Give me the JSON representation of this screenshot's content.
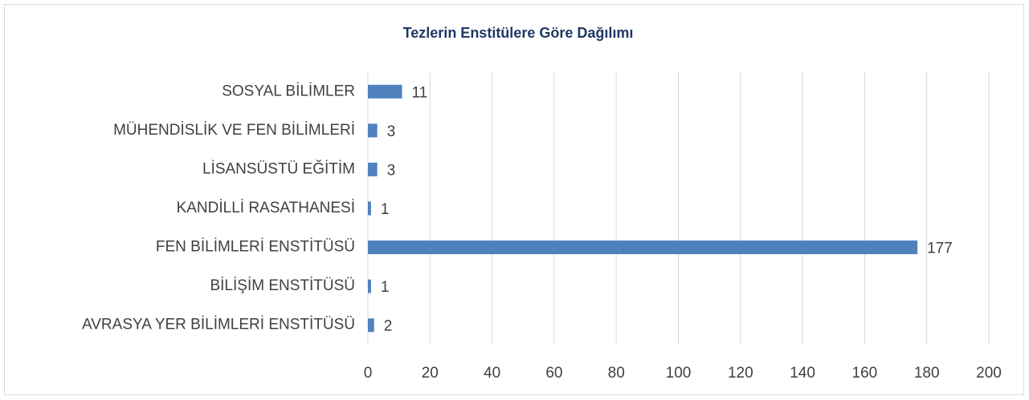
{
  "chart_data": {
    "type": "barh",
    "title": "Tezlerin Enstitülere Göre Dağılımı",
    "categories": [
      "SOSYAL BİLİMLER",
      "MÜHENDİSLİK VE FEN BİLİMLERİ",
      "LİSANSÜSTÜ EĞİTİM",
      "KANDİLLİ RASATHANESİ",
      "FEN BİLİMLERİ ENSTİTÜSÜ",
      "BİLİŞİM ENSTİTÜSÜ",
      "AVRASYA YER BİLİMLERİ ENSTİTÜSÜ"
    ],
    "values": [
      11,
      3,
      3,
      1,
      177,
      1,
      2
    ],
    "color": "#4f81bd",
    "xlim": [
      0,
      200
    ],
    "xticks": [
      0,
      20,
      40,
      60,
      80,
      100,
      120,
      140,
      160,
      180,
      200
    ],
    "grid": true
  }
}
